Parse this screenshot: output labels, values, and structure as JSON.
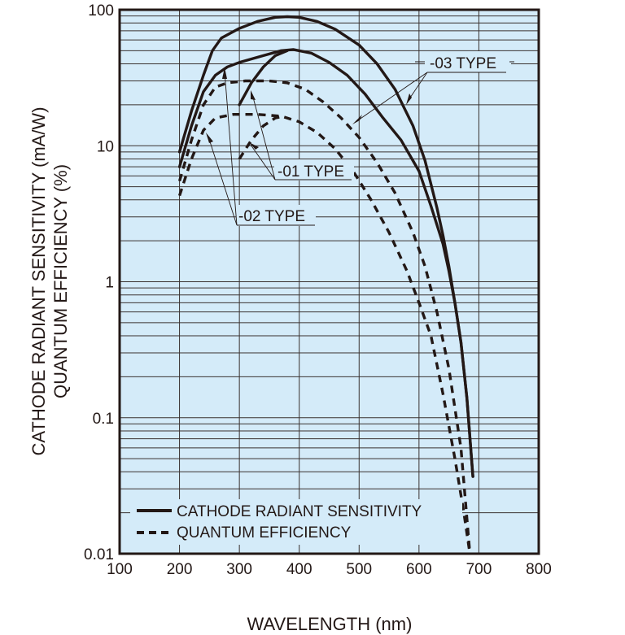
{
  "chart_data": {
    "type": "line",
    "title": "",
    "xlabel": "WAVELENGTH (nm)",
    "ylabel_lines": [
      "CATHODE RADIANT SENSITIVITY (mA/W)",
      "QUANTUM EFFICIENCY (%)"
    ],
    "xlim": [
      100,
      800
    ],
    "ylim": [
      0.01,
      100
    ],
    "yscale": "log",
    "grid": true,
    "x_ticks": [
      100,
      200,
      300,
      400,
      500,
      600,
      700,
      800
    ],
    "x_tick_labels": [
      "100",
      "200",
      "300",
      "400",
      "500",
      "600",
      "700",
      "800"
    ],
    "y_ticks": [
      0.01,
      0.1,
      1,
      10,
      100
    ],
    "y_tick_labels": [
      "0.01",
      "0.1",
      "1",
      "10",
      "100"
    ],
    "legend": {
      "placement": "bottom-left",
      "entries": [
        {
          "label": "CATHODE RADIANT SENSITIVITY",
          "style": "solid"
        },
        {
          "label": "QUANTUM EFFICIENCY",
          "style": "dashed"
        }
      ]
    },
    "annotations": [
      {
        "text": "-03 TYPE"
      },
      {
        "text": "-01 TYPE"
      },
      {
        "text": "-02 TYPE"
      }
    ],
    "series": [
      {
        "name": "-03 TYPE cathode radiant sensitivity",
        "style": "solid",
        "x": [
          200,
          220,
          240,
          255,
          270,
          300,
          330,
          360,
          380,
          400,
          430,
          460,
          500,
          530,
          560,
          590,
          610,
          630,
          640,
          650,
          660,
          670,
          680,
          690
        ],
        "y": [
          9.0,
          18,
          33,
          50,
          62,
          73,
          82,
          88,
          89,
          88,
          82,
          72,
          55,
          40,
          26,
          14,
          7.8,
          3.5,
          2.2,
          1.3,
          0.7,
          0.36,
          0.14,
          0.037
        ]
      },
      {
        "name": "-02 TYPE cathode radiant sensitivity",
        "style": "solid",
        "x": [
          200,
          220,
          240,
          260,
          280,
          300,
          340,
          370,
          390,
          420,
          450,
          480,
          510,
          540,
          570,
          600,
          620,
          640,
          650,
          660,
          670,
          680,
          690
        ],
        "y": [
          7,
          14,
          25,
          33,
          38,
          41,
          46,
          50,
          51,
          48,
          41,
          33,
          24,
          16,
          11,
          6.5,
          3.6,
          1.9,
          1.2,
          0.7,
          0.36,
          0.14,
          0.037
        ]
      },
      {
        "name": "-01 TYPE cathode radiant sensitivity",
        "style": "solid",
        "x": [
          300,
          320,
          340,
          360,
          380
        ],
        "y": [
          20,
          29,
          38,
          46,
          50
        ]
      },
      {
        "name": "-03 TYPE quantum efficiency",
        "style": "dashed",
        "x": [
          200,
          220,
          240,
          260,
          280,
          310,
          350,
          380,
          410,
          440,
          470,
          500,
          530,
          560,
          590,
          610,
          630,
          650,
          670,
          685
        ],
        "y": [
          5.5,
          11,
          20,
          27,
          29,
          30,
          30,
          29,
          26,
          21,
          16,
          11.5,
          7.5,
          4.5,
          2.3,
          1.3,
          0.6,
          0.23,
          0.06,
          0.01
        ]
      },
      {
        "name": "-02 TYPE quantum efficiency",
        "style": "dashed",
        "x": [
          200,
          220,
          240,
          260,
          290,
          330,
          370,
          400,
          430,
          460,
          490,
          520,
          550,
          580,
          600,
          620,
          640,
          660,
          675,
          685
        ],
        "y": [
          4.3,
          8,
          13,
          16,
          17,
          17,
          16.5,
          15,
          12.5,
          9.5,
          6.5,
          4,
          2.3,
          1.2,
          0.7,
          0.4,
          0.15,
          0.05,
          0.02,
          0.01
        ]
      },
      {
        "name": "-01 TYPE quantum efficiency",
        "style": "dashed",
        "x": [
          300,
          320,
          340,
          360,
          375
        ],
        "y": [
          8,
          11,
          14,
          16,
          16.5
        ]
      }
    ]
  },
  "colors": {
    "plot_bg": "#d4ebf9",
    "ink": "#231816",
    "grid": "#3a3230"
  }
}
